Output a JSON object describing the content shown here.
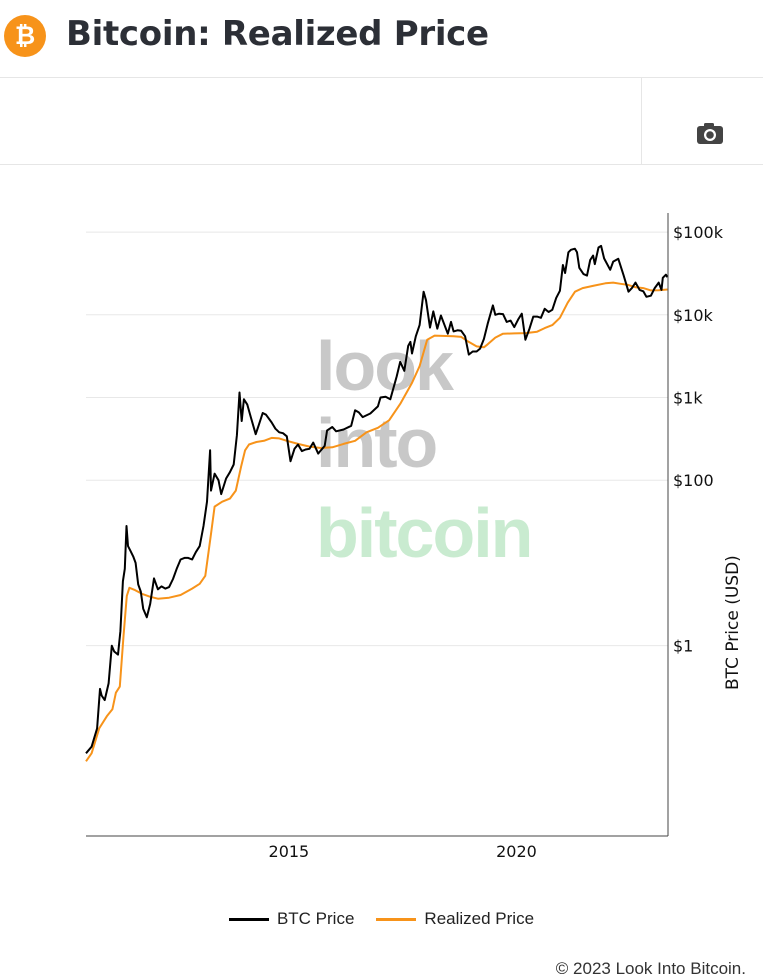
{
  "header": {
    "logo_glyph": "₿",
    "title": "Bitcoin: Realized Price"
  },
  "toolbar": {
    "camera_icon": "camera-icon"
  },
  "watermark": {
    "line1": "look",
    "line2": "into",
    "line3": "bitcoin"
  },
  "colors": {
    "btc": "#000000",
    "realized": "#f7931a",
    "brand": "#f7931a",
    "watermark_gray": "#c8c8c8",
    "watermark_green": "#c9ebd0"
  },
  "legend": [
    {
      "label": "BTC Price",
      "color": "#000000"
    },
    {
      "label": "Realized Price",
      "color": "#f7931a"
    }
  ],
  "footer": {
    "copyright": "© 2023 Look Into Bitcoin."
  },
  "chart_data": {
    "type": "line",
    "title": "Bitcoin: Realized Price",
    "xlabel": "",
    "ylabel": "BTC Price (USD)",
    "y_scale": "log",
    "y_axis_side": "right",
    "grid": "horizontal",
    "legend_position": "bottom",
    "xlim": [
      "2010-07-18",
      "2023-05-01"
    ],
    "ylim": [
      0.005,
      170000
    ],
    "x_ticks": [
      {
        "date": "2015-01-01",
        "label": "2015"
      },
      {
        "date": "2020-01-01",
        "label": "2020"
      }
    ],
    "y_ticks": [
      {
        "value": 1,
        "label": "$1"
      },
      {
        "value": 100,
        "label": "$100"
      },
      {
        "value": 1000,
        "label": "$1k"
      },
      {
        "value": 10000,
        "label": "$10k"
      },
      {
        "value": 100000,
        "label": "$100k"
      }
    ],
    "series": [
      {
        "name": "BTC Price",
        "color": "#000000",
        "points": [
          [
            "2010-07-18",
            0.05
          ],
          [
            "2010-09-01",
            0.06
          ],
          [
            "2010-10-15",
            0.1
          ],
          [
            "2010-11-07",
            0.3
          ],
          [
            "2010-11-20",
            0.25
          ],
          [
            "2010-12-15",
            0.22
          ],
          [
            "2011-01-15",
            0.35
          ],
          [
            "2011-02-10",
            1.0
          ],
          [
            "2011-03-01",
            0.85
          ],
          [
            "2011-04-01",
            0.78
          ],
          [
            "2011-04-20",
            1.5
          ],
          [
            "2011-05-10",
            6.0
          ],
          [
            "2011-05-25",
            8.5
          ],
          [
            "2011-06-08",
            28.0
          ],
          [
            "2011-06-20",
            16.0
          ],
          [
            "2011-07-10",
            14.0
          ],
          [
            "2011-08-01",
            12.0
          ],
          [
            "2011-08-20",
            10.0
          ],
          [
            "2011-09-10",
            5.5
          ],
          [
            "2011-10-01",
            4.5
          ],
          [
            "2011-10-20",
            2.8
          ],
          [
            "2011-11-18",
            2.2
          ],
          [
            "2011-12-15",
            3.2
          ],
          [
            "2012-01-15",
            6.5
          ],
          [
            "2012-02-15",
            4.8
          ],
          [
            "2012-03-15",
            5.2
          ],
          [
            "2012-04-15",
            4.9
          ],
          [
            "2012-05-15",
            5.1
          ],
          [
            "2012-06-15",
            6.4
          ],
          [
            "2012-07-15",
            8.5
          ],
          [
            "2012-08-15",
            11.0
          ],
          [
            "2012-09-15",
            11.5
          ],
          [
            "2012-10-15",
            11.5
          ],
          [
            "2012-11-15",
            11.0
          ],
          [
            "2012-12-15",
            13.5
          ],
          [
            "2013-01-15",
            16.0
          ],
          [
            "2013-02-15",
            28.0
          ],
          [
            "2013-03-15",
            55.0
          ],
          [
            "2013-04-09",
            230.0
          ],
          [
            "2013-04-16",
            75.0
          ],
          [
            "2013-05-15",
            120.0
          ],
          [
            "2013-06-15",
            100.0
          ],
          [
            "2013-07-07",
            68.0
          ],
          [
            "2013-08-15",
            105.0
          ],
          [
            "2013-09-15",
            125.0
          ],
          [
            "2013-10-15",
            155.0
          ],
          [
            "2013-11-10",
            350.0
          ],
          [
            "2013-12-01",
            1150.0
          ],
          [
            "2013-12-18",
            520.0
          ],
          [
            "2014-01-05",
            950.0
          ],
          [
            "2014-02-01",
            820.0
          ],
          [
            "2014-03-01",
            580.0
          ],
          [
            "2014-04-10",
            360.0
          ],
          [
            "2014-05-01",
            450.0
          ],
          [
            "2014-06-05",
            650.0
          ],
          [
            "2014-07-01",
            620.0
          ],
          [
            "2014-08-15",
            500.0
          ],
          [
            "2014-09-15",
            420.0
          ],
          [
            "2014-10-15",
            380.0
          ],
          [
            "2014-11-15",
            370.0
          ],
          [
            "2014-12-15",
            340.0
          ],
          [
            "2015-01-14",
            170.0
          ],
          [
            "2015-02-15",
            240.0
          ],
          [
            "2015-03-15",
            270.0
          ],
          [
            "2015-04-15",
            225.0
          ],
          [
            "2015-05-15",
            235.0
          ],
          [
            "2015-06-15",
            240.0
          ],
          [
            "2015-07-15",
            285.0
          ],
          [
            "2015-08-24",
            210.0
          ],
          [
            "2015-09-15",
            230.0
          ],
          [
            "2015-10-15",
            260.0
          ],
          [
            "2015-11-04",
            400.0
          ],
          [
            "2015-12-15",
            440.0
          ],
          [
            "2016-01-15",
            390.0
          ],
          [
            "2016-03-15",
            410.0
          ],
          [
            "2016-05-15",
            455.0
          ],
          [
            "2016-06-15",
            700.0
          ],
          [
            "2016-07-15",
            660.0
          ],
          [
            "2016-08-15",
            580.0
          ],
          [
            "2016-10-15",
            640.0
          ],
          [
            "2016-12-15",
            780.0
          ],
          [
            "2017-01-05",
            1000.0
          ],
          [
            "2017-02-15",
            1020.0
          ],
          [
            "2017-03-25",
            950.0
          ],
          [
            "2017-05-15",
            1800.0
          ],
          [
            "2017-06-12",
            2700.0
          ],
          [
            "2017-07-15",
            2100.0
          ],
          [
            "2017-08-15",
            4200.0
          ],
          [
            "2017-09-02",
            4700.0
          ],
          [
            "2017-09-15",
            3400.0
          ],
          [
            "2017-10-15",
            5500.0
          ],
          [
            "2017-11-15",
            7500.0
          ],
          [
            "2017-12-17",
            19000.0
          ],
          [
            "2018-01-05",
            15000.0
          ],
          [
            "2018-02-06",
            7000.0
          ],
          [
            "2018-03-05",
            11000.0
          ],
          [
            "2018-04-06",
            6800.0
          ],
          [
            "2018-05-05",
            9800.0
          ],
          [
            "2018-06-29",
            5900.0
          ],
          [
            "2018-07-25",
            8200.0
          ],
          [
            "2018-08-15",
            6300.0
          ],
          [
            "2018-09-15",
            6500.0
          ],
          [
            "2018-10-15",
            6400.0
          ],
          [
            "2018-11-15",
            5500.0
          ],
          [
            "2018-12-15",
            3300.0
          ],
          [
            "2019-01-15",
            3600.0
          ],
          [
            "2019-02-15",
            3600.0
          ],
          [
            "2019-03-15",
            3900.0
          ],
          [
            "2019-04-15",
            5100.0
          ],
          [
            "2019-05-15",
            7800.0
          ],
          [
            "2019-06-26",
            13000.0
          ],
          [
            "2019-07-15",
            10000.0
          ],
          [
            "2019-08-15",
            10300.0
          ],
          [
            "2019-09-15",
            10200.0
          ],
          [
            "2019-10-15",
            8200.0
          ],
          [
            "2019-11-15",
            8500.0
          ],
          [
            "2019-12-15",
            7100.0
          ],
          [
            "2020-01-15",
            8800.0
          ],
          [
            "2020-02-13",
            10300.0
          ],
          [
            "2020-03-13",
            5000.0
          ],
          [
            "2020-04-15",
            6800.0
          ],
          [
            "2020-05-15",
            9500.0
          ],
          [
            "2020-06-15",
            9500.0
          ],
          [
            "2020-07-15",
            9200.0
          ],
          [
            "2020-08-15",
            11800.0
          ],
          [
            "2020-09-15",
            10800.0
          ],
          [
            "2020-10-15",
            11500.0
          ],
          [
            "2020-11-15",
            16000.0
          ],
          [
            "2020-12-15",
            19500.0
          ],
          [
            "2021-01-08",
            40000.0
          ],
          [
            "2021-01-25",
            32000.0
          ],
          [
            "2021-02-21",
            57000.0
          ],
          [
            "2021-03-13",
            61000.0
          ],
          [
            "2021-04-14",
            63000.0
          ],
          [
            "2021-05-01",
            57000.0
          ],
          [
            "2021-05-19",
            37000.0
          ],
          [
            "2021-06-22",
            31000.0
          ],
          [
            "2021-07-20",
            29800.0
          ],
          [
            "2021-08-15",
            46000.0
          ],
          [
            "2021-09-07",
            52000.0
          ],
          [
            "2021-09-21",
            41000.0
          ],
          [
            "2021-10-20",
            65000.0
          ],
          [
            "2021-11-10",
            68000.0
          ],
          [
            "2021-12-04",
            48000.0
          ],
          [
            "2022-01-22",
            35000.0
          ],
          [
            "2022-02-15",
            44000.0
          ],
          [
            "2022-03-28",
            47500.0
          ],
          [
            "2022-05-10",
            30000.0
          ],
          [
            "2022-06-18",
            19000.0
          ],
          [
            "2022-07-15",
            21000.0
          ],
          [
            "2022-08-13",
            24500.0
          ],
          [
            "2022-09-15",
            20000.0
          ],
          [
            "2022-10-15",
            19200.0
          ],
          [
            "2022-11-09",
            16500.0
          ],
          [
            "2022-12-15",
            17000.0
          ],
          [
            "2023-01-14",
            21000.0
          ],
          [
            "2023-02-15",
            24500.0
          ],
          [
            "2023-03-10",
            20000.0
          ],
          [
            "2023-03-20",
            28000.0
          ],
          [
            "2023-04-14",
            30500.0
          ],
          [
            "2023-04-26",
            28500.0
          ]
        ]
      },
      {
        "name": "Realized Price",
        "color": "#f7931a",
        "points": [
          [
            "2010-07-18",
            0.04
          ],
          [
            "2010-09-01",
            0.05
          ],
          [
            "2010-11-01",
            0.1
          ],
          [
            "2011-01-01",
            0.14
          ],
          [
            "2011-02-15",
            0.17
          ],
          [
            "2011-03-15",
            0.27
          ],
          [
            "2011-04-15",
            0.32
          ],
          [
            "2011-05-15",
            1.3
          ],
          [
            "2011-06-10",
            4.0
          ],
          [
            "2011-07-01",
            5.0
          ],
          [
            "2011-08-15",
            4.7
          ],
          [
            "2011-10-15",
            4.2
          ],
          [
            "2011-12-15",
            3.9
          ],
          [
            "2012-02-15",
            3.7
          ],
          [
            "2012-05-15",
            3.8
          ],
          [
            "2012-08-15",
            4.1
          ],
          [
            "2012-11-15",
            4.9
          ],
          [
            "2013-01-15",
            5.6
          ],
          [
            "2013-03-01",
            7.0
          ],
          [
            "2013-04-15",
            22.0
          ],
          [
            "2013-05-15",
            48.0
          ],
          [
            "2013-07-15",
            55.0
          ],
          [
            "2013-09-15",
            60.0
          ],
          [
            "2013-11-01",
            75.0
          ],
          [
            "2013-12-15",
            150.0
          ],
          [
            "2014-01-15",
            230.0
          ],
          [
            "2014-02-15",
            270.0
          ],
          [
            "2014-04-15",
            290.0
          ],
          [
            "2014-06-15",
            300.0
          ],
          [
            "2014-08-15",
            325.0
          ],
          [
            "2014-10-15",
            320.0
          ],
          [
            "2014-12-15",
            300.0
          ],
          [
            "2015-03-15",
            275.0
          ],
          [
            "2015-06-15",
            255.0
          ],
          [
            "2015-09-15",
            245.0
          ],
          [
            "2015-12-15",
            250.0
          ],
          [
            "2016-03-15",
            275.0
          ],
          [
            "2016-06-15",
            300.0
          ],
          [
            "2016-09-15",
            380.0
          ],
          [
            "2016-12-15",
            430.0
          ],
          [
            "2017-03-15",
            530.0
          ],
          [
            "2017-06-15",
            850.0
          ],
          [
            "2017-09-15",
            1500.0
          ],
          [
            "2017-11-15",
            2400.0
          ],
          [
            "2018-01-15",
            5000.0
          ],
          [
            "2018-03-15",
            5600.0
          ],
          [
            "2018-05-15",
            5550.0
          ],
          [
            "2018-08-15",
            5500.0
          ],
          [
            "2018-10-15",
            5400.0
          ],
          [
            "2018-12-15",
            4700.0
          ],
          [
            "2019-02-15",
            4150.0
          ],
          [
            "2019-04-15",
            4050.0
          ],
          [
            "2019-05-15",
            4400.0
          ],
          [
            "2019-07-15",
            5300.0
          ],
          [
            "2019-09-15",
            5900.0
          ],
          [
            "2019-12-15",
            5950.0
          ],
          [
            "2020-03-15",
            6000.0
          ],
          [
            "2020-06-15",
            6250.0
          ],
          [
            "2020-08-15",
            6900.0
          ],
          [
            "2020-10-15",
            7500.0
          ],
          [
            "2020-12-15",
            9200.0
          ],
          [
            "2021-02-15",
            14000.0
          ],
          [
            "2021-04-15",
            19000.0
          ],
          [
            "2021-06-15",
            21000.0
          ],
          [
            "2021-09-15",
            22500.0
          ],
          [
            "2021-12-15",
            24000.0
          ],
          [
            "2022-02-15",
            24500.0
          ],
          [
            "2022-04-15",
            23700.0
          ],
          [
            "2022-06-15",
            23000.0
          ],
          [
            "2022-08-15",
            21500.0
          ],
          [
            "2022-10-15",
            21000.0
          ],
          [
            "2022-12-15",
            19700.0
          ],
          [
            "2023-02-15",
            19800.0
          ],
          [
            "2023-04-26",
            20200.0
          ]
        ]
      }
    ]
  }
}
